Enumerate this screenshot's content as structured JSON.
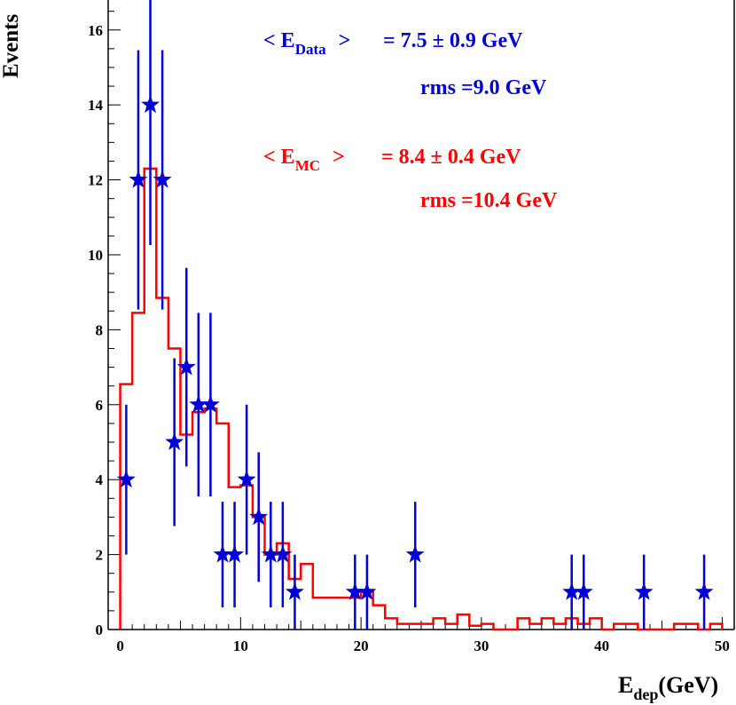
{
  "chart_data": {
    "type": "scatter",
    "xlabel_main": "E",
    "xlabel_sub": "dep",
    "xlabel_unit": "(GeV)",
    "ylabel": "Events",
    "xlim": [
      -1,
      51
    ],
    "ylim": [
      0,
      16.8
    ],
    "xticks": [
      0,
      10,
      20,
      30,
      40,
      50
    ],
    "yticks": [
      0,
      2,
      4,
      6,
      8,
      10,
      12,
      14,
      16
    ],
    "colors": {
      "data": "#0000d8",
      "mc": "#ff0000",
      "axis": "#000000"
    },
    "annotations": {
      "data_mean_label": "< E",
      "data_mean_sub": "Data",
      "data_mean_close": ">",
      "data_mean_value": "= 7.5 ± 0.9 GeV",
      "data_rms": "rms =9.0 GeV",
      "mc_mean_label": "< E",
      "mc_mean_sub": "MC",
      "mc_mean_close": ">",
      "mc_mean_value": "= 8.4 ± 0.4 GeV",
      "mc_rms": "rms =10.4 GeV"
    },
    "series": [
      {
        "kind": "points",
        "marker": "star",
        "x": [
          0.5,
          1.5,
          2.5,
          3.5,
          4.5,
          5.5,
          6.5,
          7.5,
          8.5,
          9.5,
          10.5,
          11.5,
          12.5,
          13.5,
          14.5,
          19.5,
          20.5,
          24.5,
          37.5,
          38.5,
          43.5,
          48.5
        ],
        "y": [
          4,
          12,
          14,
          12,
          5,
          7,
          6,
          6,
          2,
          2,
          4,
          3,
          2,
          2,
          1,
          1,
          1,
          2,
          1,
          1,
          1,
          1
        ],
        "err": [
          2,
          3.46,
          3.74,
          3.46,
          2.24,
          2.65,
          2.45,
          2.45,
          1.41,
          1.41,
          2,
          1.73,
          1.41,
          1.41,
          1,
          1,
          1,
          1.41,
          1,
          1,
          1,
          1
        ]
      },
      {
        "kind": "histogram",
        "bin_edges": [
          0,
          1,
          2,
          3,
          4,
          5,
          6,
          7,
          8,
          9,
          10,
          11,
          12,
          13,
          14,
          15,
          16,
          17,
          18,
          19,
          20,
          21,
          22,
          23,
          24,
          25,
          26,
          27,
          28,
          29,
          30,
          31,
          32,
          33,
          34,
          35,
          36,
          37,
          38,
          39,
          40,
          41,
          42,
          43,
          44,
          45,
          46,
          47,
          48,
          49,
          50
        ],
        "values": [
          6.55,
          8.45,
          12.3,
          8.85,
          7.5,
          5.2,
          5.8,
          5.9,
          5.5,
          3.8,
          3.85,
          3.0,
          2.0,
          2.3,
          1.35,
          1.75,
          0.85,
          0.85,
          0.85,
          0.85,
          1.0,
          0.65,
          0.3,
          0.15,
          0.15,
          0.15,
          0.3,
          0.15,
          0.4,
          0.1,
          0.15,
          0.0,
          0.0,
          0.3,
          0.15,
          0.3,
          0.15,
          0.3,
          0.15,
          0.3,
          0.0,
          0.15,
          0.15,
          0.0,
          0.0,
          0.0,
          0.15,
          0.15,
          0.0,
          0.15
        ]
      }
    ]
  }
}
